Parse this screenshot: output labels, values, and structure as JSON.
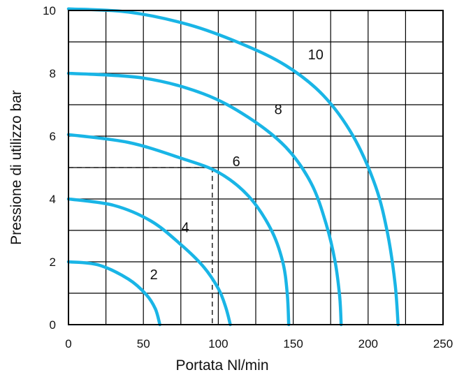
{
  "chart_data": {
    "type": "line",
    "xlabel": "Portata Nl/min",
    "ylabel": "Pressione di utilizzo bar",
    "xlim": [
      0,
      250
    ],
    "ylim": [
      0,
      10
    ],
    "x_ticks": [
      "0",
      "50",
      "100",
      "150",
      "200",
      "250"
    ],
    "y_ticks": [
      "0",
      "2",
      "4",
      "6",
      "8",
      "10"
    ],
    "grid": true,
    "line_color": "#19b5e6",
    "grid_color": "#000000",
    "series": [
      {
        "name": "2",
        "label_at": [
          57,
          1.45
        ],
        "points": [
          [
            0,
            2
          ],
          [
            20,
            1.9
          ],
          [
            40,
            1.45
          ],
          [
            52,
            0.95
          ],
          [
            58,
            0.5
          ],
          [
            61,
            0
          ]
        ]
      },
      {
        "name": "4",
        "label_at": [
          78,
          2.95
        ],
        "points": [
          [
            0,
            4
          ],
          [
            30,
            3.8
          ],
          [
            55,
            3.3
          ],
          [
            75,
            2.55
          ],
          [
            90,
            1.85
          ],
          [
            100,
            1.15
          ],
          [
            105,
            0.55
          ],
          [
            108,
            0
          ]
        ]
      },
      {
        "name": "6",
        "label_at": [
          112,
          5.05
        ],
        "points": [
          [
            0,
            6.05
          ],
          [
            40,
            5.8
          ],
          [
            75,
            5.3
          ],
          [
            100,
            4.85
          ],
          [
            120,
            4.1
          ],
          [
            135,
            3.05
          ],
          [
            143,
            2.0
          ],
          [
            146,
            1.0
          ],
          [
            147,
            0
          ]
        ]
      },
      {
        "name": "8",
        "label_at": [
          140,
          6.7
        ],
        "points": [
          [
            0,
            8
          ],
          [
            50,
            7.85
          ],
          [
            90,
            7.35
          ],
          [
            120,
            6.6
          ],
          [
            145,
            5.65
          ],
          [
            162,
            4.5
          ],
          [
            172,
            3.2
          ],
          [
            178,
            2.0
          ],
          [
            181,
            0.9
          ],
          [
            182,
            0
          ]
        ]
      },
      {
        "name": "10",
        "label_at": [
          165,
          8.45
        ],
        "points": [
          [
            0,
            10.05
          ],
          [
            40,
            9.95
          ],
          [
            80,
            9.55
          ],
          [
            115,
            8.95
          ],
          [
            145,
            8.25
          ],
          [
            170,
            7.3
          ],
          [
            190,
            6.0
          ],
          [
            205,
            4.4
          ],
          [
            213,
            2.9
          ],
          [
            218,
            1.3
          ],
          [
            220,
            0
          ]
        ]
      }
    ],
    "reference_lines": [
      {
        "from": [
          0,
          5
        ],
        "to": [
          96,
          5
        ]
      },
      {
        "from": [
          96,
          5
        ],
        "to": [
          96,
          0
        ]
      }
    ]
  }
}
